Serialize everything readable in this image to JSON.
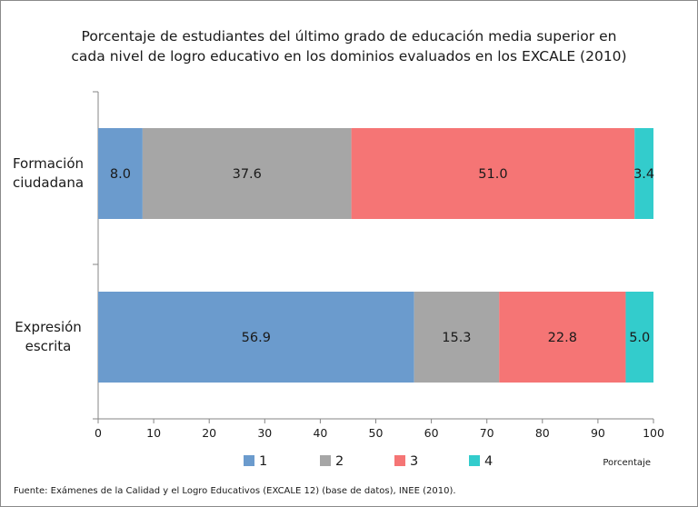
{
  "chart_data": {
    "type": "bar",
    "orientation": "horizontal",
    "stacked": true,
    "title_lines": [
      "Porcentaje de estudiantes  del último grado de educación media superior en",
      "cada nivel de logro educativo en los dominios evaluados en los EXCALE (2010)"
    ],
    "categories": [
      [
        "Formación",
        "ciudadana"
      ],
      [
        "Expresión",
        "escrita"
      ]
    ],
    "series": [
      {
        "name": "1",
        "color": "#6b9bcd",
        "values": [
          8.0,
          56.9
        ]
      },
      {
        "name": "2",
        "color": "#a6a6a6",
        "values": [
          37.6,
          15.3
        ]
      },
      {
        "name": "3",
        "color": "#f57575",
        "values": [
          51.0,
          22.8
        ]
      },
      {
        "name": "4",
        "color": "#33cccc",
        "values": [
          3.4,
          5.0
        ]
      }
    ],
    "data_labels": [
      [
        "8.0",
        "37.6",
        "51.0",
        "3.4"
      ],
      [
        "56.9",
        "15.3",
        "22.8",
        "5.0"
      ]
    ],
    "xlim": [
      0,
      100
    ],
    "xticks": [
      0,
      10,
      20,
      30,
      40,
      50,
      60,
      70,
      80,
      90,
      100
    ],
    "xlabel": "Porcentaje",
    "ylabel": "",
    "grid": false,
    "legend_position": "bottom"
  },
  "source_note": "Fuente: Exámenes de la Calidad y el Logro Educativos (EXCALE 12) (base de datos),  INEE (2010)."
}
